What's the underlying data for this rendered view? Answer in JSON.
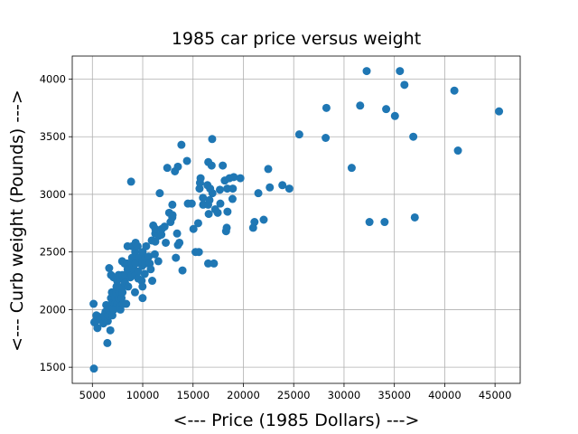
{
  "chart_data": {
    "type": "scatter",
    "title": "1985 car price versus weight",
    "xlabel": "<--- Price (1985 Dollars) --->",
    "ylabel": "<--- Curb weight (Pounds) --->",
    "xlim": [
      3000,
      47500
    ],
    "ylim": [
      1360,
      4200
    ],
    "xticks": [
      5000,
      10000,
      15000,
      20000,
      25000,
      30000,
      35000,
      40000,
      45000
    ],
    "yticks": [
      1500,
      2000,
      2500,
      3000,
      3500,
      4000
    ],
    "grid": true,
    "color": "#1f77b4",
    "points": [
      [
        5151,
        1488
      ],
      [
        5118,
        2050
      ],
      [
        5195,
        1890
      ],
      [
        5348,
        1900
      ],
      [
        5389,
        1910
      ],
      [
        5399,
        1950
      ],
      [
        5499,
        1840
      ],
      [
        5572,
        1940
      ],
      [
        5795,
        1920
      ],
      [
        6095,
        1880
      ],
      [
        6189,
        1950
      ],
      [
        6229,
        1940
      ],
      [
        6295,
        1980
      ],
      [
        6338,
        1920
      ],
      [
        6377,
        2040
      ],
      [
        6479,
        1990
      ],
      [
        6488,
        1710
      ],
      [
        6529,
        1900
      ],
      [
        6575,
        1950
      ],
      [
        6649,
        2000
      ],
      [
        6669,
        2360
      ],
      [
        6692,
        1950
      ],
      [
        6785,
        1820
      ],
      [
        6795,
        2040
      ],
      [
        6849,
        2100
      ],
      [
        6855,
        2300
      ],
      [
        6918,
        2050
      ],
      [
        6938,
        2150
      ],
      [
        6989,
        1950
      ],
      [
        7053,
        2010
      ],
      [
        7099,
        2280
      ],
      [
        7126,
        2000
      ],
      [
        7295,
        2100
      ],
      [
        7299,
        2060
      ],
      [
        7349,
        2150
      ],
      [
        7395,
        2200
      ],
      [
        7463,
        2250
      ],
      [
        7499,
        2050
      ],
      [
        7603,
        2300
      ],
      [
        7609,
        2100
      ],
      [
        7689,
        2150
      ],
      [
        7738,
        2190
      ],
      [
        7775,
        2030
      ],
      [
        7788,
        2000
      ],
      [
        7799,
        2270
      ],
      [
        7898,
        2100
      ],
      [
        7957,
        2420
      ],
      [
        7975,
        2300
      ],
      [
        7995,
        2150
      ],
      [
        8013,
        2200
      ],
      [
        8058,
        2050
      ],
      [
        8189,
        2250
      ],
      [
        8195,
        2400
      ],
      [
        8238,
        2300
      ],
      [
        8249,
        2230
      ],
      [
        8358,
        2050
      ],
      [
        8449,
        2400
      ],
      [
        8495,
        2550
      ],
      [
        8499,
        2350
      ],
      [
        8558,
        2200
      ],
      [
        8778,
        2280
      ],
      [
        8845,
        3110
      ],
      [
        8916,
        2300
      ],
      [
        8921,
        2400
      ],
      [
        8948,
        2450
      ],
      [
        8949,
        2550
      ],
      [
        9095,
        2350
      ],
      [
        9233,
        2150
      ],
      [
        9258,
        2500
      ],
      [
        9279,
        2300
      ],
      [
        9295,
        2580
      ],
      [
        9298,
        2400
      ],
      [
        9495,
        2550
      ],
      [
        9538,
        2330
      ],
      [
        9549,
        2270
      ],
      [
        9639,
        2450
      ],
      [
        9895,
        2250
      ],
      [
        9959,
        2380
      ],
      [
        9960,
        2420
      ],
      [
        9980,
        2200
      ],
      [
        9988,
        2100
      ],
      [
        9989,
        2500
      ],
      [
        10198,
        2310
      ],
      [
        10245,
        2400
      ],
      [
        10295,
        2450
      ],
      [
        10345,
        2550
      ],
      [
        10595,
        2460
      ],
      [
        10698,
        2400
      ],
      [
        10795,
        2350
      ],
      [
        10898,
        2600
      ],
      [
        10945,
        2250
      ],
      [
        11048,
        2730
      ],
      [
        11199,
        2480
      ],
      [
        11245,
        2660
      ],
      [
        11248,
        2590
      ],
      [
        11259,
        2700
      ],
      [
        11549,
        2420
      ],
      [
        11595,
        2640
      ],
      [
        11694,
        3010
      ],
      [
        11850,
        2650
      ],
      [
        11900,
        2700
      ],
      [
        12170,
        2720
      ],
      [
        12290,
        2580
      ],
      [
        12440,
        3230
      ],
      [
        12629,
        2840
      ],
      [
        12764,
        2760
      ],
      [
        12940,
        2800
      ],
      [
        12945,
        2910
      ],
      [
        12964,
        2820
      ],
      [
        13200,
        3200
      ],
      [
        13295,
        2450
      ],
      [
        13415,
        2660
      ],
      [
        13495,
        3240
      ],
      [
        13499,
        2560
      ],
      [
        13645,
        2580
      ],
      [
        13845,
        3430
      ],
      [
        13950,
        2340
      ],
      [
        14399,
        3290
      ],
      [
        14489,
        2920
      ],
      [
        14869,
        2920
      ],
      [
        15040,
        2700
      ],
      [
        15250,
        2500
      ],
      [
        15510,
        2750
      ],
      [
        15580,
        2500
      ],
      [
        15645,
        3050
      ],
      [
        15690,
        3100
      ],
      [
        15750,
        3140
      ],
      [
        15985,
        2970
      ],
      [
        15998,
        2910
      ],
      [
        16430,
        3080
      ],
      [
        16500,
        2400
      ],
      [
        16503,
        2910
      ],
      [
        16515,
        3280
      ],
      [
        16558,
        2830
      ],
      [
        16630,
        2950
      ],
      [
        16695,
        3050
      ],
      [
        16845,
        3250
      ],
      [
        16900,
        3480
      ],
      [
        16925,
        3010
      ],
      [
        17075,
        2400
      ],
      [
        17199,
        2870
      ],
      [
        17450,
        2840
      ],
      [
        17669,
        3040
      ],
      [
        17710,
        2920
      ],
      [
        17950,
        3250
      ],
      [
        18150,
        3120
      ],
      [
        18280,
        2680
      ],
      [
        18344,
        2710
      ],
      [
        18399,
        3050
      ],
      [
        18420,
        2850
      ],
      [
        18620,
        3140
      ],
      [
        18920,
        2960
      ],
      [
        18950,
        3050
      ],
      [
        19045,
        3150
      ],
      [
        19699,
        3140
      ],
      [
        20970,
        2710
      ],
      [
        21105,
        2760
      ],
      [
        21485,
        3010
      ],
      [
        22018,
        2780
      ],
      [
        22470,
        3220
      ],
      [
        22625,
        3060
      ],
      [
        23875,
        3080
      ],
      [
        24565,
        3050
      ],
      [
        25552,
        3520
      ],
      [
        28176,
        3490
      ],
      [
        28248,
        3750
      ],
      [
        30760,
        3230
      ],
      [
        31600,
        3770
      ],
      [
        32250,
        4070
      ],
      [
        32528,
        2760
      ],
      [
        34028,
        2760
      ],
      [
        34184,
        3740
      ],
      [
        35056,
        3680
      ],
      [
        35550,
        4070
      ],
      [
        36000,
        3950
      ],
      [
        36880,
        3500
      ],
      [
        37028,
        2800
      ],
      [
        40960,
        3900
      ],
      [
        41315,
        3380
      ],
      [
        45400,
        3720
      ]
    ]
  }
}
